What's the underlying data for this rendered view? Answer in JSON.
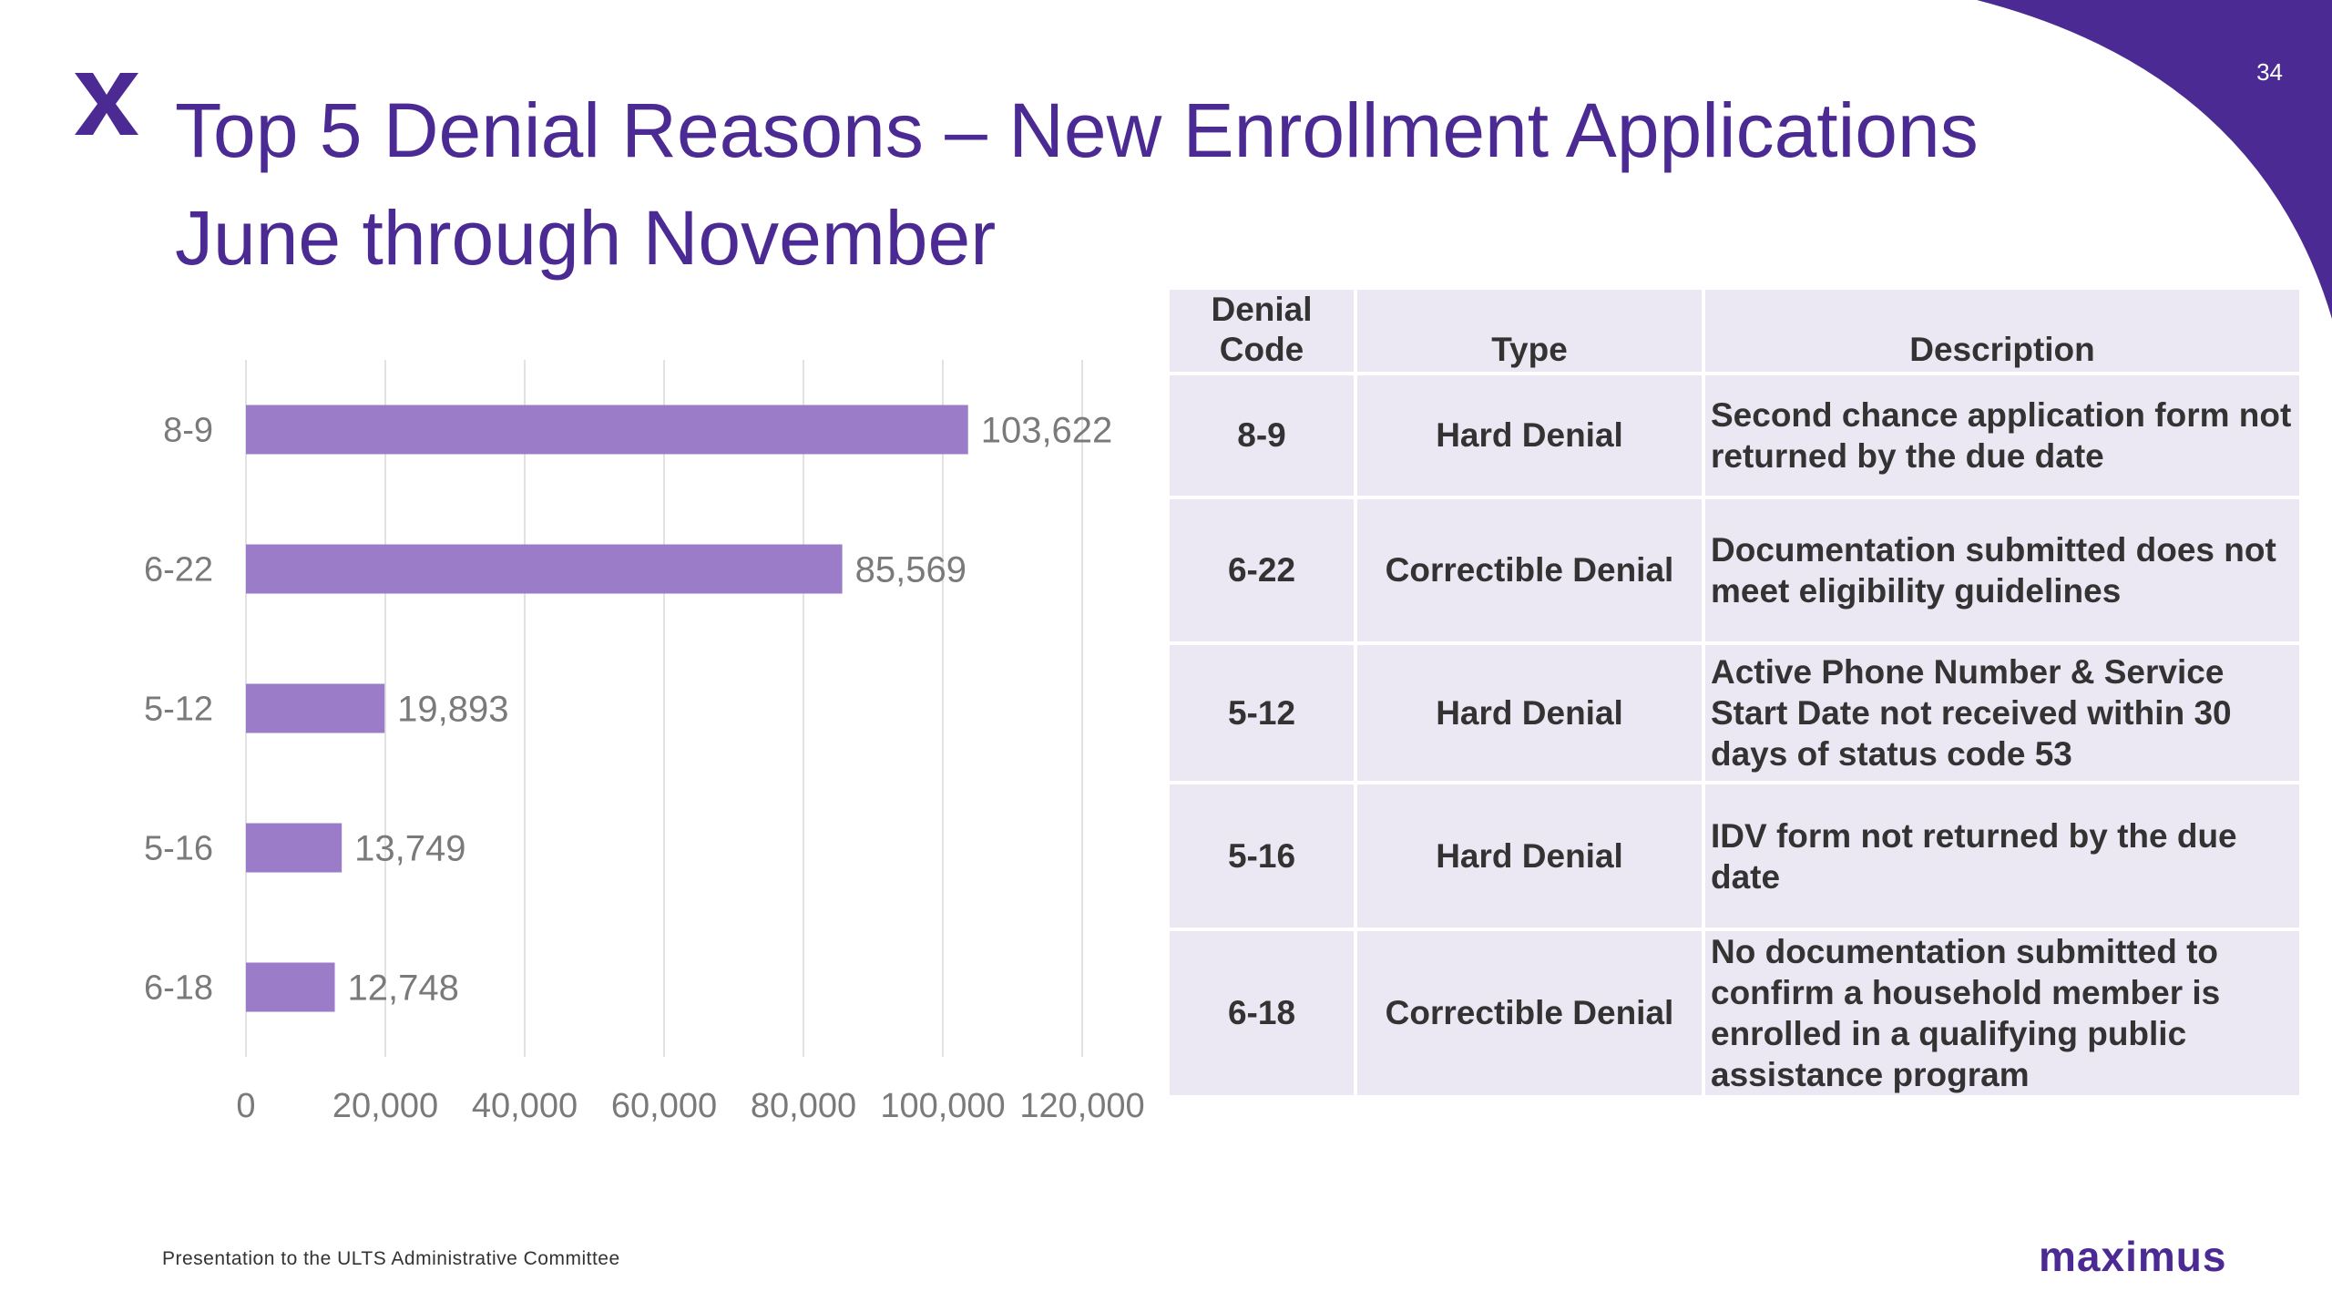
{
  "slide": {
    "page_number": "34",
    "title_line1": "Top 5 Denial Reasons – New Enrollment Applications",
    "title_line2": "June through November",
    "footer_note": "Presentation to the ULTS Administrative Committee",
    "brand": "maximus",
    "brand_color": "#4b2a93",
    "bar_color": "#9b7cc8",
    "table_cell_color": "#ebe8f3"
  },
  "chart_data": {
    "type": "bar",
    "orientation": "horizontal",
    "categories": [
      "8-9",
      "6-22",
      "5-12",
      "5-16",
      "6-18"
    ],
    "values": [
      103622,
      85569,
      19893,
      13749,
      12748
    ],
    "data_labels": [
      "103,622",
      "85,569",
      "19,893",
      "13,749",
      "12,748"
    ],
    "xticks": [
      "0",
      "20,000",
      "40,000",
      "60,000",
      "80,000",
      "100,000",
      "120,000"
    ],
    "xlim": [
      0,
      120000
    ],
    "grid": "vertical",
    "legend": "none"
  },
  "table": {
    "headers": {
      "code_line1": "Denial",
      "code_line2": "Code",
      "type": "Type",
      "description": "Description"
    },
    "rows": [
      {
        "code": "8-9",
        "type": "Hard Denial",
        "description": "Second chance application form not returned by the due date"
      },
      {
        "code": "6-22",
        "type": "Correctible Denial",
        "description": "Documentation submitted does not meet eligibility guidelines"
      },
      {
        "code": "5-12",
        "type": "Hard Denial",
        "description": "Active Phone Number & Service Start Date not received within 30 days of status code 53"
      },
      {
        "code": "5-16",
        "type": "Hard Denial",
        "description": "IDV form not returned by the due date"
      },
      {
        "code": "6-18",
        "type": "Correctible Denial",
        "description": "No documentation submitted to confirm a household member is enrolled in a qualifying public assistance program"
      }
    ]
  }
}
